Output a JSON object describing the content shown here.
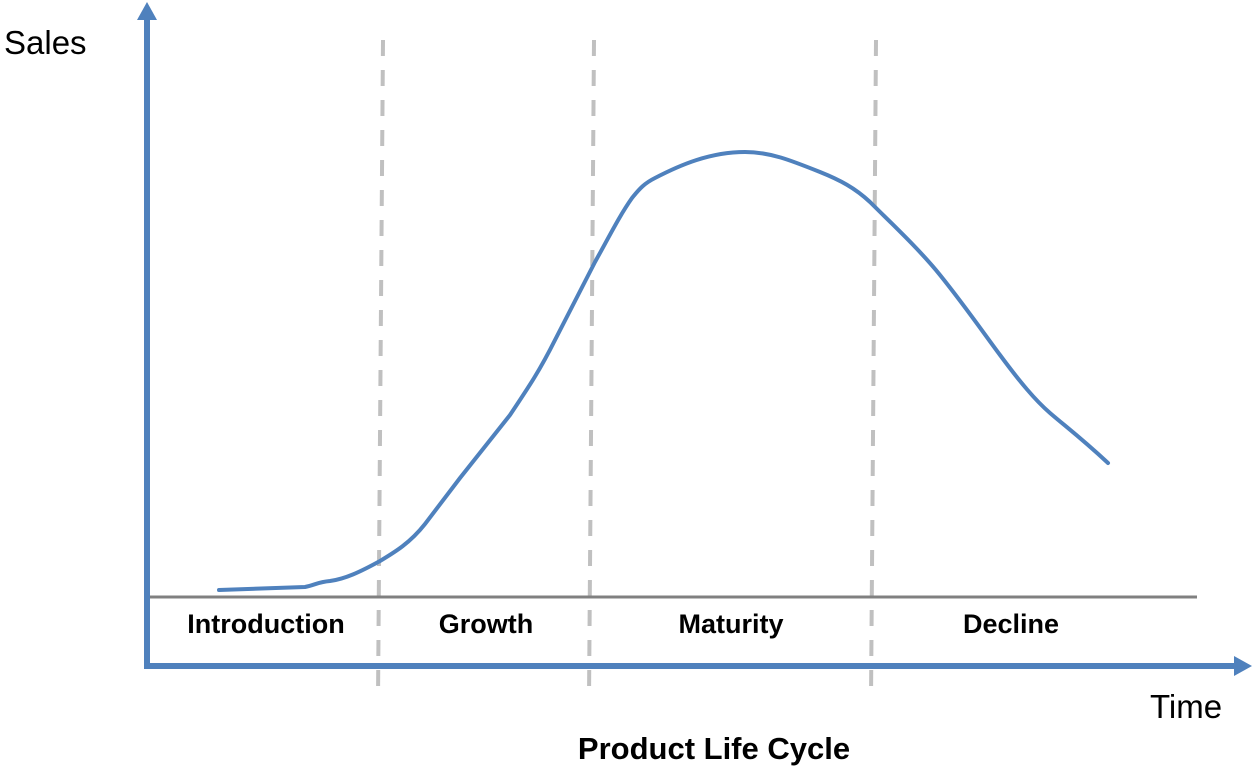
{
  "title": "Product Life Cycle",
  "axes": {
    "y_label": "Sales",
    "x_label": "Time"
  },
  "stages": [
    "Introduction",
    "Growth",
    "Maturity",
    "Decline"
  ],
  "colors": {
    "axis": "#4f81bd",
    "curve": "#4f81bd",
    "baseline": "#808080",
    "divider": "#bfbfbf"
  }
}
